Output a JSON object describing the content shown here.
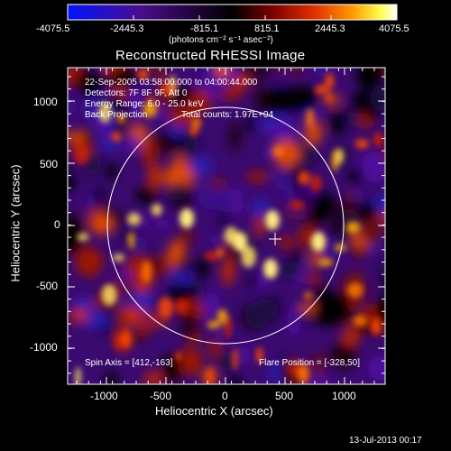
{
  "colorbar": {
    "ticks": [
      "-4075.5",
      "-2445.3",
      "-815.1",
      "815.1",
      "2445.3",
      "4075.5"
    ],
    "unit_label": "(photons cm⁻² s⁻¹ asec⁻²)",
    "colors": [
      "#0014ff",
      "#3b0a6b",
      "#000000",
      "#5a0000",
      "#d83000",
      "#ffb000",
      "#ffff60",
      "#ffffff"
    ]
  },
  "title": "Reconstructed RHESSI Image",
  "header_lines": [
    "22-Sep-2005 03:58:00.000 to 04:00:44.000",
    "Detectors: 7F 8F 9F, Att 0",
    "Energy Range: 6.0 - 25.0 keV"
  ],
  "method": "Back Projection",
  "total_counts": "Total counts: 1.97E+04",
  "spin_axis": "Spin Axis = [412,-163]",
  "flare_position": "Flare Position = [-328,50]",
  "axes": {
    "xlabel": "Heliocentric X (arcsec)",
    "ylabel": "Heliocentric Y (arcsec)",
    "xticks": [
      "-1000",
      "-500",
      "0",
      "500",
      "1000"
    ],
    "yticks": [
      "1000",
      "500",
      "0",
      "-500",
      "-1000"
    ],
    "xlim": [
      -1260,
      1320
    ],
    "ylim": [
      -1280,
      1300
    ]
  },
  "footer_date": "13-Jul-2013 00:17"
}
